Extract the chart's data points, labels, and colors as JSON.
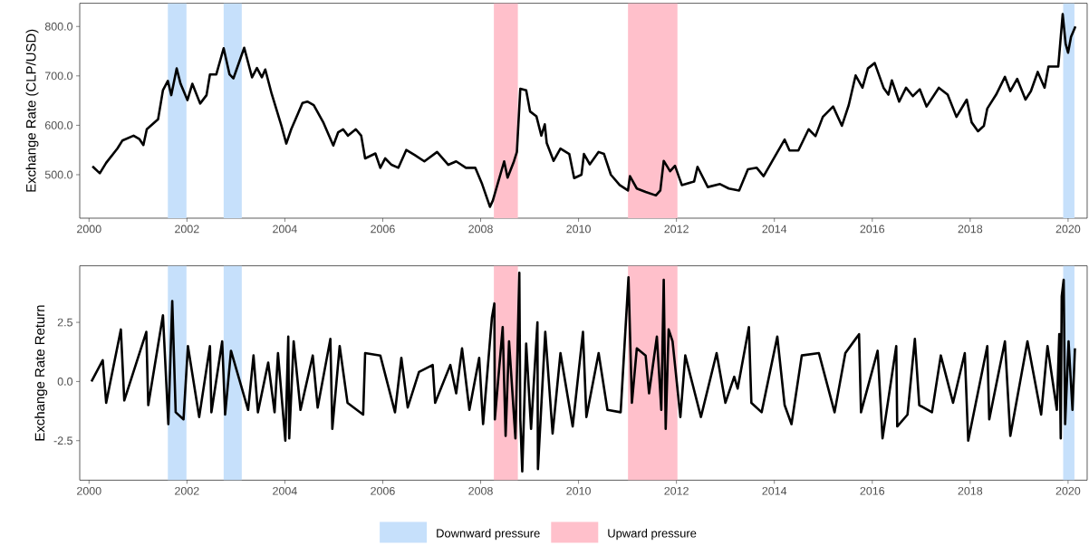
{
  "chart_data": [
    {
      "type": "line",
      "ylabel": "Exchange Rate (CLP/USD)",
      "color": "#000000",
      "xlim": [
        1999.81,
        2020.39
      ],
      "xticks": [
        2000,
        2002,
        2004,
        2006,
        2008,
        2010,
        2012,
        2014,
        2016,
        2018,
        2020
      ],
      "ylim": [
        412,
        847
      ],
      "yticks": [
        {
          "value": 500,
          "label": "500.0"
        },
        {
          "value": 600,
          "label": "600.0"
        },
        {
          "value": 700,
          "label": "700.0"
        },
        {
          "value": 800,
          "label": "800.0"
        }
      ],
      "grid": false,
      "legend": "bottom",
      "bands": [
        {
          "axis": "x",
          "from": 2001.61,
          "to": 2001.99,
          "label": "Downward pressure",
          "color": "#c6e0fb"
        },
        {
          "axis": "x",
          "from": 2002.75,
          "to": 2003.12,
          "color": "#c6e0fb"
        },
        {
          "axis": "x",
          "from": 2008.27,
          "to": 2008.76,
          "label": "Upward pressure",
          "color": "#ffc0cb"
        },
        {
          "axis": "x",
          "from": 2011.01,
          "to": 2012.02,
          "color": "#ffc0cb"
        },
        {
          "axis": "x",
          "from": 2019.9,
          "to": 2020.13,
          "color": "#c6e0fb"
        }
      ],
      "x": [
        2000.07,
        2000.22,
        2000.35,
        2000.58,
        2000.68,
        2000.91,
        2001.03,
        2001.11,
        2001.18,
        2001.41,
        2001.51,
        2001.61,
        2001.68,
        2001.79,
        2001.87,
        2002.01,
        2002.11,
        2002.27,
        2002.4,
        2002.47,
        2002.6,
        2002.75,
        2002.87,
        2002.95,
        2003.17,
        2003.33,
        2003.43,
        2003.53,
        2003.6,
        2003.73,
        2003.93,
        2004.03,
        2004.13,
        2004.26,
        2004.36,
        2004.46,
        2004.59,
        2004.79,
        2004.99,
        2005.09,
        2005.19,
        2005.29,
        2005.45,
        2005.56,
        2005.64,
        2005.85,
        2005.95,
        2006.05,
        2006.18,
        2006.32,
        2006.48,
        2006.65,
        2006.85,
        2007.11,
        2007.34,
        2007.5,
        2007.7,
        2007.89,
        2008.03,
        2008.19,
        2008.25,
        2008.48,
        2008.55,
        2008.68,
        2008.74,
        2008.81,
        2008.93,
        2009.01,
        2009.14,
        2009.24,
        2009.31,
        2009.35,
        2009.49,
        2009.63,
        2009.81,
        2009.91,
        2010.06,
        2010.11,
        2010.23,
        2010.41,
        2010.52,
        2010.66,
        2010.84,
        2011.01,
        2011.05,
        2011.19,
        2011.37,
        2011.58,
        2011.67,
        2011.74,
        2011.87,
        2011.97,
        2012.11,
        2012.36,
        2012.43,
        2012.64,
        2012.89,
        2013.07,
        2013.28,
        2013.46,
        2013.64,
        2013.78,
        2013.96,
        2014.21,
        2014.31,
        2014.49,
        2014.7,
        2014.84,
        2014.99,
        2015.2,
        2015.38,
        2015.52,
        2015.66,
        2015.8,
        2015.91,
        2016.05,
        2016.23,
        2016.33,
        2016.4,
        2016.55,
        2016.69,
        2016.83,
        2016.97,
        2017.11,
        2017.36,
        2017.54,
        2017.72,
        2017.93,
        2018.03,
        2018.16,
        2018.28,
        2018.35,
        2018.53,
        2018.71,
        2018.82,
        2018.96,
        2019.13,
        2019.24,
        2019.38,
        2019.52,
        2019.6,
        2019.8,
        2019.89,
        2019.95,
        2020.0,
        2020.06,
        2020.15
      ],
      "values": [
        517,
        503,
        524,
        553,
        569,
        579,
        572,
        560,
        592,
        612,
        671,
        690,
        661,
        715,
        684,
        651,
        684,
        644,
        661,
        703,
        703,
        756,
        703,
        695,
        757,
        697,
        716,
        697,
        713,
        664,
        599,
        563,
        592,
        622,
        645,
        648,
        641,
        605,
        559,
        586,
        592,
        579,
        592,
        579,
        533,
        543,
        514,
        533,
        520,
        514,
        550,
        540,
        527,
        546,
        520,
        527,
        514,
        514,
        481,
        435,
        448,
        527,
        494,
        527,
        546,
        674,
        671,
        628,
        618,
        579,
        602,
        564,
        528,
        553,
        542,
        493,
        500,
        542,
        521,
        546,
        542,
        500,
        479,
        468,
        497,
        472,
        465,
        458,
        468,
        528,
        507,
        518,
        479,
        486,
        516,
        475,
        481,
        472,
        468,
        511,
        514,
        497,
        528,
        571,
        549,
        549,
        592,
        578,
        617,
        638,
        599,
        641,
        701,
        676,
        715,
        726,
        676,
        662,
        691,
        648,
        676,
        659,
        673,
        638,
        676,
        662,
        617,
        652,
        606,
        588,
        599,
        634,
        662,
        698,
        669,
        694,
        652,
        669,
        708,
        676,
        719,
        719,
        825,
        765,
        747,
        779,
        800
      ]
    },
    {
      "type": "line",
      "ylabel": "Exchange Rate Return",
      "color": "#000000",
      "xlim": [
        1999.81,
        2020.39
      ],
      "xticks": [
        2000,
        2002,
        2004,
        2006,
        2008,
        2010,
        2012,
        2014,
        2016,
        2018,
        2020
      ],
      "ylim": [
        -4.17,
        4.89
      ],
      "yticks": [
        {
          "value": -2.5,
          "label": "-2.5"
        },
        {
          "value": 0,
          "label": "0.0"
        },
        {
          "value": 2.5,
          "label": "2.5"
        }
      ],
      "grid": false,
      "bands": [
        {
          "axis": "x",
          "from": 2001.61,
          "to": 2001.99,
          "color": "#c6e0fb"
        },
        {
          "axis": "x",
          "from": 2002.75,
          "to": 2003.12,
          "color": "#c6e0fb"
        },
        {
          "axis": "x",
          "from": 2008.27,
          "to": 2008.76,
          "color": "#ffc0cb"
        },
        {
          "axis": "x",
          "from": 2011.01,
          "to": 2012.02,
          "color": "#ffc0cb"
        },
        {
          "axis": "x",
          "from": 2019.9,
          "to": 2020.13,
          "color": "#c6e0fb"
        }
      ],
      "x": [
        2000.05,
        2000.28,
        2000.35,
        2000.65,
        2000.72,
        2001.17,
        2001.21,
        2001.51,
        2001.62,
        2001.7,
        2001.77,
        2001.93,
        2002.02,
        2002.25,
        2002.47,
        2002.5,
        2002.72,
        2002.78,
        2002.9,
        2003.25,
        2003.36,
        2003.45,
        2003.66,
        2003.79,
        2003.86,
        2004.01,
        2004.07,
        2004.09,
        2004.18,
        2004.32,
        2004.57,
        2004.67,
        2004.93,
        2004.97,
        2005.12,
        2005.28,
        2005.6,
        2005.64,
        2005.95,
        2006.25,
        2006.38,
        2006.51,
        2006.74,
        2007.02,
        2007.07,
        2007.38,
        2007.5,
        2007.62,
        2007.77,
        2007.97,
        2008.05,
        2008.23,
        2008.28,
        2008.29,
        2008.45,
        2008.51,
        2008.58,
        2008.71,
        2008.79,
        2008.81,
        2008.85,
        2008.93,
        2009.03,
        2009.16,
        2009.17,
        2009.32,
        2009.47,
        2009.63,
        2009.88,
        2010.09,
        2010.16,
        2010.41,
        2010.59,
        2010.86,
        2011.02,
        2011.09,
        2011.19,
        2011.37,
        2011.44,
        2011.6,
        2011.69,
        2011.74,
        2011.78,
        2011.84,
        2011.92,
        2012.08,
        2012.18,
        2012.5,
        2012.82,
        2013.0,
        2013.18,
        2013.25,
        2013.48,
        2013.53,
        2013.74,
        2014.06,
        2014.21,
        2014.35,
        2014.56,
        2014.91,
        2015.23,
        2015.45,
        2015.66,
        2015.73,
        2015.77,
        2016.11,
        2016.21,
        2016.49,
        2016.51,
        2016.72,
        2016.87,
        2016.96,
        2017.22,
        2017.4,
        2017.65,
        2017.89,
        2017.96,
        2018.35,
        2018.39,
        2018.71,
        2018.82,
        2019.17,
        2019.45,
        2019.58,
        2019.77,
        2019.82,
        2019.85,
        2019.87,
        2019.91,
        2019.94,
        2020.01,
        2020.09,
        2020.14
      ],
      "values": [
        0.0,
        0.9,
        -0.9,
        2.2,
        -0.8,
        2.1,
        -1.0,
        2.8,
        -1.8,
        3.4,
        -1.3,
        -1.6,
        1.5,
        -1.5,
        1.5,
        -1.3,
        1.7,
        -1.4,
        1.3,
        -1.2,
        1.1,
        -1.3,
        0.8,
        -1.3,
        1.2,
        -2.5,
        1.9,
        -2.4,
        1.7,
        -1.2,
        1.1,
        -1.1,
        1.8,
        -2.0,
        1.5,
        -0.9,
        -1.4,
        1.2,
        1.1,
        -1.3,
        1.0,
        -1.1,
        0.4,
        0.7,
        -0.9,
        0.7,
        -0.5,
        1.4,
        -1.2,
        1.0,
        -1.8,
        2.7,
        3.3,
        -1.6,
        2.3,
        -2.3,
        1.7,
        -2.4,
        4.6,
        -1.6,
        -3.8,
        1.6,
        -2.0,
        2.5,
        -3.7,
        2.1,
        -2.2,
        1.2,
        -1.9,
        2.1,
        -1.5,
        1.2,
        -1.2,
        -1.3,
        4.4,
        -0.9,
        1.4,
        1.1,
        -0.5,
        1.9,
        -1.2,
        4.3,
        -2.0,
        2.2,
        1.7,
        -1.5,
        1.1,
        -1.5,
        1.2,
        -0.9,
        0.2,
        -0.3,
        2.3,
        -0.9,
        -1.3,
        1.9,
        -1.0,
        -1.8,
        1.1,
        1.2,
        -1.3,
        1.2,
        1.8,
        2.0,
        -1.3,
        1.3,
        -2.4,
        1.5,
        -1.9,
        -1.4,
        1.8,
        -1.0,
        -1.3,
        1.1,
        -0.9,
        1.2,
        -2.5,
        1.5,
        -1.6,
        1.7,
        -2.3,
        1.7,
        -1.4,
        1.5,
        -1.2,
        2.0,
        -2.4,
        3.6,
        4.3,
        -1.8,
        1.7,
        -1.2,
        1.4
      ]
    }
  ]
}
